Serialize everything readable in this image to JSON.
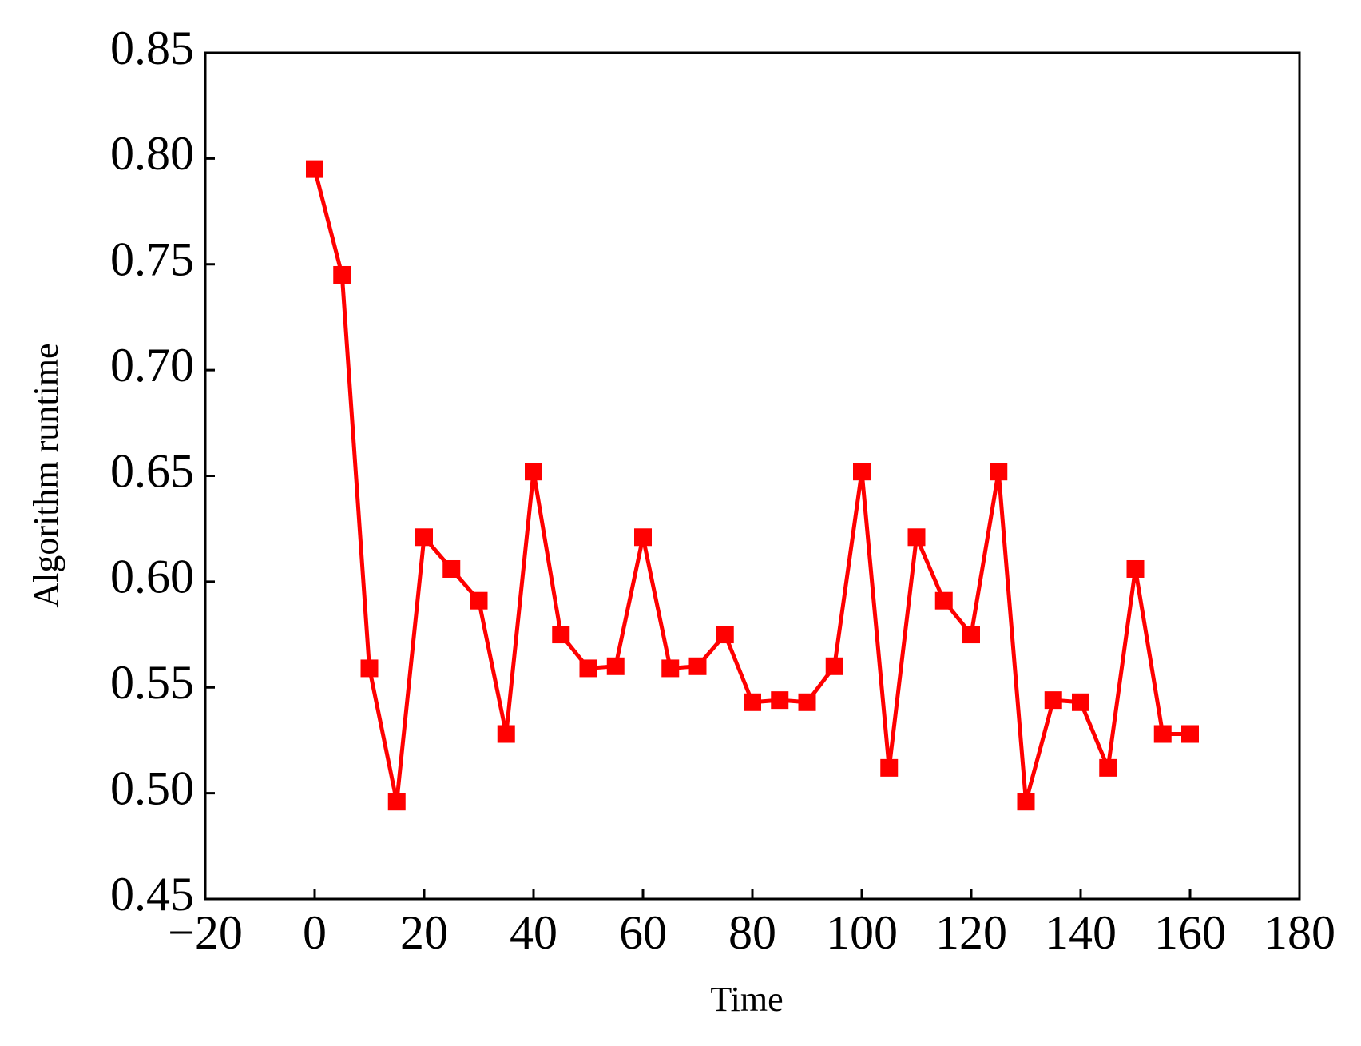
{
  "chart_data": {
    "type": "line",
    "x_label": "Time",
    "y_label": "Algorithm runtime",
    "x": [
      0,
      5,
      10,
      15,
      20,
      25,
      30,
      35,
      40,
      45,
      50,
      55,
      60,
      65,
      70,
      75,
      80,
      85,
      90,
      95,
      100,
      105,
      110,
      115,
      120,
      125,
      130,
      135,
      140,
      145,
      150,
      155,
      160
    ],
    "series": [
      {
        "color": "#ff0000",
        "values": [
          0.795,
          0.745,
          0.559,
          0.496,
          0.621,
          0.606,
          0.591,
          0.528,
          0.652,
          0.575,
          0.559,
          0.56,
          0.621,
          0.559,
          0.56,
          0.575,
          0.543,
          0.544,
          0.543,
          0.56,
          0.652,
          0.512,
          0.621,
          0.591,
          0.575,
          0.652,
          0.496,
          0.544,
          0.543,
          0.512,
          0.606,
          0.528,
          0.528
        ]
      }
    ],
    "xlim": [
      -20,
      180
    ],
    "xticks": [
      {
        "value": -20,
        "label": "−20"
      },
      0,
      20,
      40,
      60,
      80,
      100,
      120,
      140,
      160,
      180
    ],
    "ylim": [
      0.45,
      0.85
    ],
    "yticks": [
      0.45,
      {
        "value": 0.5,
        "label": "0.50"
      },
      0.55,
      {
        "value": 0.6,
        "label": "0.60"
      },
      0.65,
      {
        "value": 0.7,
        "label": "0.70"
      },
      0.75,
      {
        "value": 0.8,
        "label": "0.80"
      },
      0.85
    ],
    "grid": false
  }
}
